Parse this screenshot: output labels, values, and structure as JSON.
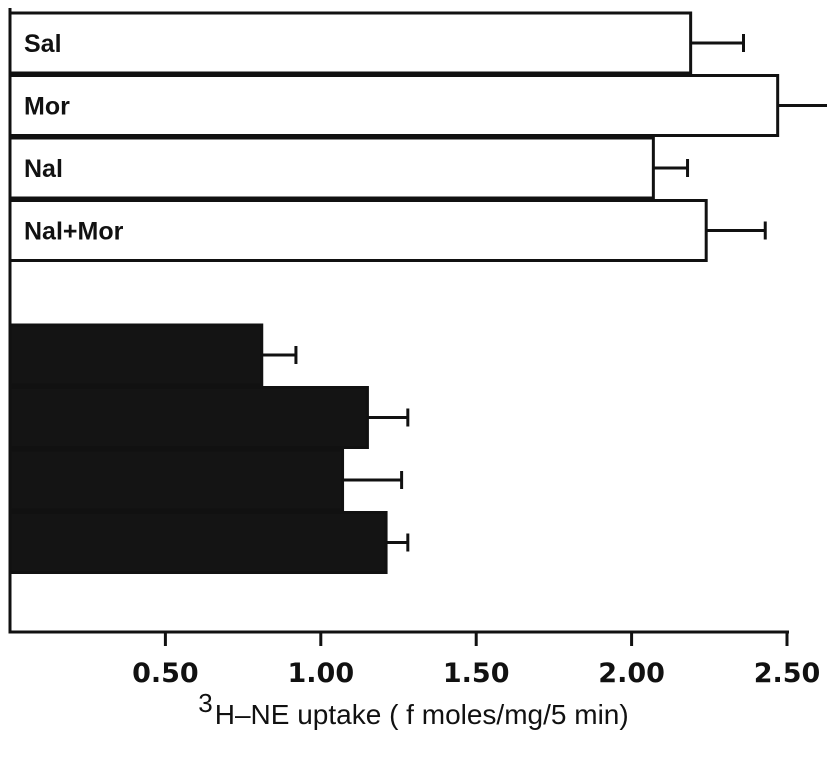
{
  "chart_data": {
    "type": "bar",
    "orientation": "horizontal",
    "x_axis": {
      "ticks": [
        0.5,
        1.0,
        1.5,
        2.0,
        2.5
      ],
      "tick_labels": [
        "0.50",
        "1.00",
        "1.50",
        "2.00",
        "2.50"
      ],
      "range": [
        0.0,
        2.5
      ],
      "label_superscript": "3",
      "label_text": "H–NE uptake ( f moles/mg/5 min)"
    },
    "groups": [
      {
        "fill": "#ffffff",
        "bars": [
          {
            "label": "Sal",
            "value": 2.19,
            "error": 0.17
          },
          {
            "label": "Mor",
            "value": 2.47,
            "error": 0.17
          },
          {
            "label": "Nal",
            "value": 2.07,
            "error": 0.11
          },
          {
            "label": "Nal+Mor",
            "value": 2.24,
            "error": 0.19
          }
        ]
      },
      {
        "fill": "#141414",
        "bars": [
          {
            "value": 0.81,
            "error": 0.11
          },
          {
            "value": 1.15,
            "error": 0.13
          },
          {
            "value": 1.07,
            "error": 0.19
          },
          {
            "value": 1.21,
            "error": 0.07
          }
        ]
      }
    ],
    "grid": false,
    "legend": "none"
  }
}
